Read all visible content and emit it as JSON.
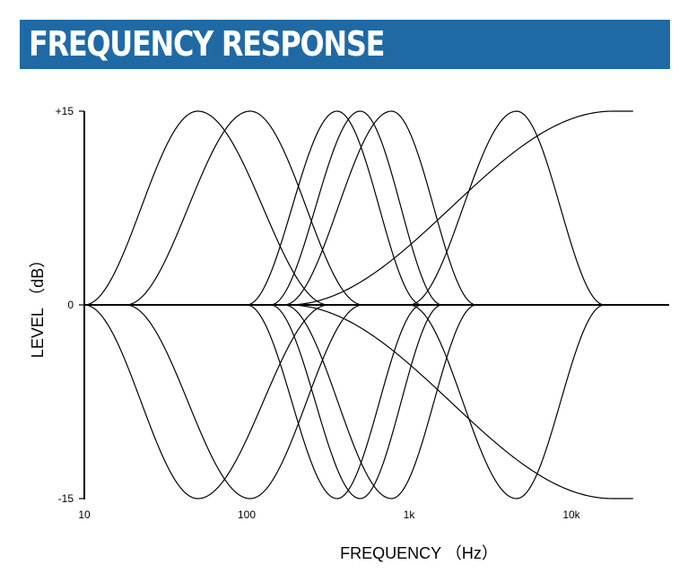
{
  "header": {
    "title": "FREQUENCY RESPONSE"
  },
  "colors": {
    "banner": "#1f6aa5",
    "banner_text": "#ffffff",
    "curve": "#000000"
  },
  "chart_data": {
    "type": "line",
    "title": "FREQUENCY RESPONSE",
    "xlabel": "FREQUENCY （Hz）",
    "ylabel": "LEVEL （dB）",
    "xscale": "log",
    "xlim": [
      10,
      40000
    ],
    "ylim": [
      -15,
      15
    ],
    "x_ticks": [
      {
        "value": 10,
        "label": "10"
      },
      {
        "value": 100,
        "label": "100"
      },
      {
        "value": 1000,
        "label": "1k"
      },
      {
        "value": 10000,
        "label": "10k"
      }
    ],
    "y_ticks": [
      {
        "value": 15,
        "label": "+15"
      },
      {
        "value": 0,
        "label": "0"
      },
      {
        "value": -15,
        "label": "-15"
      }
    ],
    "grid": false,
    "series": [
      {
        "kind": "peak",
        "center": 50,
        "gain": 15,
        "low_zero": 10,
        "high_zero": 320
      },
      {
        "kind": "peak",
        "center": 50,
        "gain": -15,
        "low_zero": 10,
        "high_zero": 320
      },
      {
        "kind": "peak",
        "center": 105,
        "gain": 15,
        "low_zero": 18,
        "high_zero": 520
      },
      {
        "kind": "peak",
        "center": 105,
        "gain": -15,
        "low_zero": 18,
        "high_zero": 520
      },
      {
        "kind": "peak",
        "center": 360,
        "gain": 15,
        "low_zero": 100,
        "high_zero": 1200
      },
      {
        "kind": "peak",
        "center": 360,
        "gain": -15,
        "low_zero": 100,
        "high_zero": 1200
      },
      {
        "kind": "peak",
        "center": 500,
        "gain": 15,
        "low_zero": 140,
        "high_zero": 1600
      },
      {
        "kind": "peak",
        "center": 500,
        "gain": -15,
        "low_zero": 140,
        "high_zero": 1600
      },
      {
        "kind": "peak",
        "center": 780,
        "gain": 15,
        "low_zero": 170,
        "high_zero": 2600
      },
      {
        "kind": "peak",
        "center": 780,
        "gain": -15,
        "low_zero": 170,
        "high_zero": 2600
      },
      {
        "kind": "peak",
        "center": 4600,
        "gain": 15,
        "low_zero": 1000,
        "high_zero": 16000
      },
      {
        "kind": "peak",
        "center": 4600,
        "gain": -15,
        "low_zero": 1000,
        "high_zero": 16000
      },
      {
        "kind": "shelf",
        "corner_start": 180,
        "corner_end": 18000,
        "gain": 15,
        "end": 24000
      },
      {
        "kind": "shelf",
        "corner_start": 180,
        "corner_end": 18000,
        "gain": -15,
        "end": 24000
      }
    ]
  }
}
